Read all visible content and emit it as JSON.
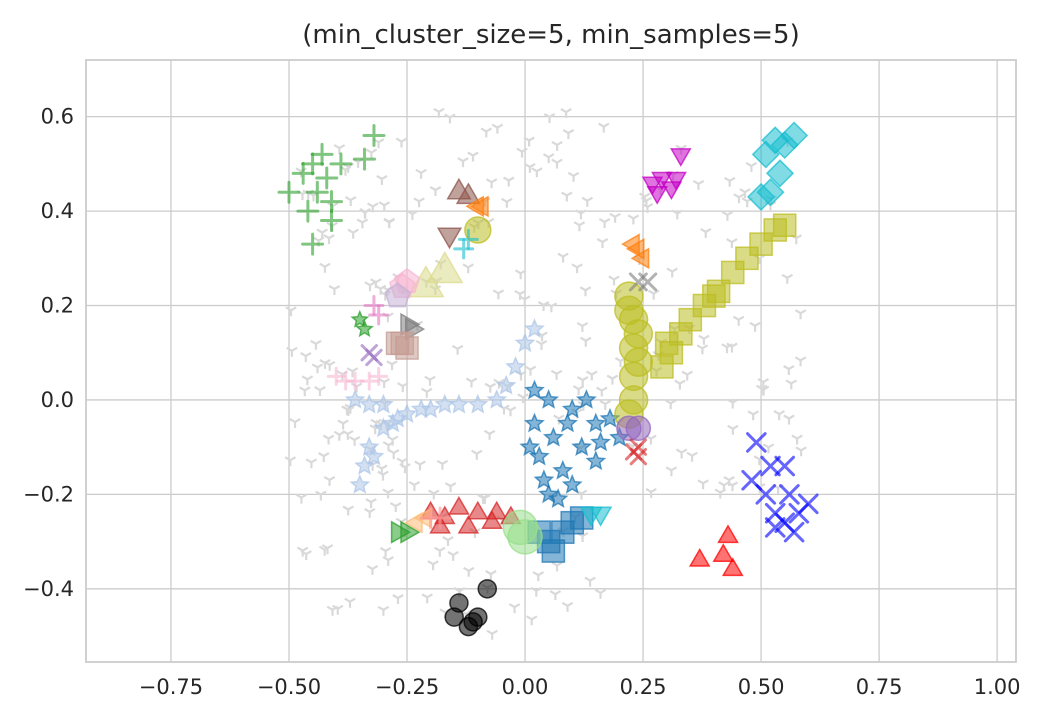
{
  "chart_data": {
    "type": "scatter",
    "title": "(min_cluster_size=5, min_samples=5)",
    "xlabel": "",
    "ylabel": "",
    "xlim": [
      -0.93,
      1.04
    ],
    "ylim": [
      -0.555,
      0.72
    ],
    "xticks": [
      -0.75,
      -0.5,
      -0.25,
      0.0,
      0.25,
      0.5,
      0.75,
      1.0
    ],
    "xtick_labels": [
      "−0.75",
      "−0.50",
      "−0.25",
      "0.00",
      "0.25",
      "0.50",
      "0.75",
      "1.00"
    ],
    "yticks": [
      -0.4,
      -0.2,
      0.0,
      0.2,
      0.4,
      0.6
    ],
    "ytick_labels": [
      "−0.4",
      "−0.2",
      "0.0",
      "0.2",
      "0.4",
      "0.6"
    ],
    "grid": true,
    "legend": "none",
    "noise": {
      "color": "#d9d9d9",
      "marker": "tri",
      "regions": [
        {
          "x": [
            -0.5,
            -0.2
          ],
          "y": [
            -0.45,
            0.55
          ],
          "n": 110
        },
        {
          "x": [
            -0.2,
            0.2
          ],
          "y": [
            -0.5,
            0.62
          ],
          "n": 110
        },
        {
          "x": [
            0.2,
            0.6
          ],
          "y": [
            -0.2,
            0.55
          ],
          "n": 70
        }
      ]
    },
    "series": [
      {
        "color": "#1f77b4",
        "marker": "star",
        "size": 9,
        "points": [
          [
            0.02,
            -0.05
          ],
          [
            0.05,
            0.0
          ],
          [
            0.1,
            -0.02
          ],
          [
            0.15,
            -0.05
          ],
          [
            0.2,
            -0.08
          ],
          [
            0.03,
            -0.12
          ],
          [
            0.08,
            -0.15
          ],
          [
            0.12,
            -0.1
          ],
          [
            0.05,
            -0.2
          ],
          [
            0.1,
            -0.18
          ],
          [
            0.02,
            0.02
          ],
          [
            0.06,
            -0.08
          ],
          [
            0.15,
            -0.13
          ],
          [
            0.18,
            -0.04
          ],
          [
            0.04,
            -0.17
          ],
          [
            0.09,
            -0.05
          ],
          [
            0.13,
            0.0
          ],
          [
            0.01,
            -0.1
          ],
          [
            0.07,
            -0.21
          ],
          [
            0.16,
            -0.09
          ]
        ]
      },
      {
        "color": "#1f77b4",
        "marker": "square",
        "size": 13,
        "points": [
          [
            0.05,
            -0.3
          ],
          [
            0.08,
            -0.28
          ],
          [
            0.1,
            -0.26
          ],
          [
            0.12,
            -0.25
          ],
          [
            0.06,
            -0.32
          ],
          [
            0.03,
            -0.28
          ]
        ]
      },
      {
        "color": "#aec7e8",
        "marker": "star",
        "size": 9,
        "points": [
          [
            -0.35,
            -0.18
          ],
          [
            -0.33,
            -0.1
          ],
          [
            -0.3,
            -0.06
          ],
          [
            -0.27,
            -0.04
          ],
          [
            -0.25,
            -0.03
          ],
          [
            -0.22,
            -0.02
          ],
          [
            -0.2,
            -0.02
          ],
          [
            -0.17,
            -0.01
          ],
          [
            -0.14,
            -0.01
          ],
          [
            -0.1,
            -0.01
          ],
          [
            -0.06,
            0.0
          ],
          [
            -0.04,
            0.03
          ],
          [
            -0.02,
            0.07
          ],
          [
            0.0,
            0.12
          ],
          [
            0.02,
            0.15
          ],
          [
            -0.36,
            0.0
          ],
          [
            -0.33,
            -0.01
          ],
          [
            -0.3,
            -0.01
          ],
          [
            -0.34,
            -0.14
          ],
          [
            -0.32,
            -0.12
          ],
          [
            -0.28,
            -0.05
          ]
        ]
      },
      {
        "color": "#d62728",
        "marker": "triangle-up",
        "size": 11,
        "points": [
          [
            -0.2,
            -0.24
          ],
          [
            -0.17,
            -0.25
          ],
          [
            -0.14,
            -0.23
          ],
          [
            -0.1,
            -0.24
          ],
          [
            -0.06,
            -0.24
          ],
          [
            -0.03,
            -0.25
          ],
          [
            -0.18,
            -0.27
          ],
          [
            -0.12,
            -0.27
          ],
          [
            -0.07,
            -0.26
          ]
        ]
      },
      {
        "color": "#98df8a",
        "marker": "circle",
        "size": 17,
        "points": [
          [
            -0.01,
            -0.27
          ],
          [
            0.0,
            -0.29
          ]
        ]
      },
      {
        "color": "#17becf",
        "marker": "triangle-down",
        "size": 12,
        "points": [
          [
            0.14,
            -0.24
          ],
          [
            0.16,
            -0.24
          ]
        ]
      },
      {
        "color": "#2ca02c",
        "marker": "triangle-right",
        "size": 12,
        "points": [
          [
            -0.27,
            -0.28
          ],
          [
            -0.25,
            -0.28
          ]
        ]
      },
      {
        "color": "#ffbb78",
        "marker": "triangle-left",
        "size": 11,
        "points": [
          [
            -0.23,
            -0.26
          ],
          [
            -0.21,
            -0.25
          ]
        ]
      },
      {
        "color": "#ff9896",
        "marker": "plus",
        "size": 10,
        "points": [
          [
            -0.2,
            -0.25
          ],
          [
            -0.18,
            -0.25
          ]
        ]
      },
      {
        "color": "#000000",
        "marker": "circle",
        "size": 9,
        "points": [
          [
            -0.14,
            -0.43
          ],
          [
            -0.08,
            -0.4
          ],
          [
            -0.1,
            -0.46
          ],
          [
            -0.12,
            -0.48
          ],
          [
            -0.15,
            -0.46
          ],
          [
            -0.11,
            -0.47
          ]
        ]
      },
      {
        "color": "#bcbd22",
        "marker": "circle",
        "size": 14,
        "points": [
          [
            0.22,
            0.22
          ],
          [
            0.23,
            0.17
          ],
          [
            0.23,
            0.11
          ],
          [
            0.23,
            0.05
          ],
          [
            0.23,
            0.0
          ],
          [
            0.22,
            -0.03
          ],
          [
            0.24,
            0.14
          ],
          [
            0.24,
            0.08
          ],
          [
            0.22,
            0.19
          ]
        ]
      },
      {
        "color": "#bcbd22",
        "marker": "square",
        "size": 13,
        "points": [
          [
            0.29,
            0.07
          ],
          [
            0.31,
            0.1
          ],
          [
            0.33,
            0.14
          ],
          [
            0.35,
            0.17
          ],
          [
            0.38,
            0.2
          ],
          [
            0.41,
            0.23
          ],
          [
            0.44,
            0.27
          ],
          [
            0.47,
            0.3
          ],
          [
            0.5,
            0.33
          ],
          [
            0.53,
            0.36
          ],
          [
            0.55,
            0.37
          ],
          [
            0.3,
            0.12
          ],
          [
            0.4,
            0.22
          ]
        ]
      },
      {
        "color": "#bcbd22",
        "marker": "circle",
        "size": 13,
        "points": [
          [
            -0.1,
            0.36
          ]
        ]
      },
      {
        "color": "#9467bd",
        "marker": "circle",
        "size": 12,
        "points": [
          [
            0.22,
            -0.06
          ],
          [
            0.24,
            -0.06
          ]
        ]
      },
      {
        "color": "#d62728",
        "marker": "x",
        "size": 9,
        "points": [
          [
            0.23,
            -0.11
          ],
          [
            0.24,
            -0.12
          ],
          [
            0.24,
            -0.1
          ]
        ]
      },
      {
        "color": "#7f7f7f",
        "marker": "x",
        "size": 10,
        "points": [
          [
            0.24,
            0.25
          ],
          [
            0.26,
            0.25
          ]
        ]
      },
      {
        "color": "#ff7f0e",
        "marker": "triangle-left",
        "size": 11,
        "points": [
          [
            0.23,
            0.33
          ],
          [
            0.25,
            0.3
          ],
          [
            0.24,
            0.32
          ]
        ]
      },
      {
        "color": "#c400c4",
        "marker": "triangle-down",
        "size": 11,
        "points": [
          [
            0.27,
            0.46
          ],
          [
            0.29,
            0.47
          ],
          [
            0.31,
            0.45
          ],
          [
            0.33,
            0.52
          ],
          [
            0.28,
            0.44
          ],
          [
            0.32,
            0.47
          ]
        ]
      },
      {
        "color": "#17becf",
        "marker": "diamond",
        "size": 13,
        "points": [
          [
            0.51,
            0.52
          ],
          [
            0.53,
            0.55
          ],
          [
            0.55,
            0.54
          ],
          [
            0.57,
            0.56
          ],
          [
            0.52,
            0.44
          ],
          [
            0.54,
            0.48
          ],
          [
            0.5,
            0.43
          ]
        ]
      },
      {
        "color": "#0000ff",
        "marker": "x",
        "size": 11,
        "points": [
          [
            0.49,
            -0.09
          ],
          [
            0.52,
            -0.14
          ],
          [
            0.55,
            -0.14
          ],
          [
            0.48,
            -0.17
          ],
          [
            0.51,
            -0.2
          ],
          [
            0.53,
            -0.24
          ],
          [
            0.56,
            -0.2
          ],
          [
            0.58,
            -0.24
          ],
          [
            0.6,
            -0.22
          ],
          [
            0.53,
            -0.27
          ],
          [
            0.57,
            -0.28
          ],
          [
            0.55,
            -0.26
          ]
        ]
      },
      {
        "color": "#ff0000",
        "marker": "triangle-up",
        "size": 11,
        "points": [
          [
            0.37,
            -0.34
          ],
          [
            0.42,
            -0.33
          ],
          [
            0.43,
            -0.29
          ],
          [
            0.44,
            -0.36
          ]
        ]
      },
      {
        "color": "#2ca02c",
        "marker": "plus",
        "size": 10,
        "points": [
          [
            -0.5,
            0.44
          ],
          [
            -0.47,
            0.48
          ],
          [
            -0.45,
            0.5
          ],
          [
            -0.43,
            0.52
          ],
          [
            -0.42,
            0.47
          ],
          [
            -0.39,
            0.5
          ],
          [
            -0.32,
            0.56
          ],
          [
            -0.34,
            0.51
          ],
          [
            -0.44,
            0.44
          ],
          [
            -0.46,
            0.4
          ],
          [
            -0.41,
            0.42
          ],
          [
            -0.41,
            0.38
          ],
          [
            -0.45,
            0.33
          ]
        ]
      },
      {
        "color": "#2ca02c",
        "marker": "star",
        "size": 8,
        "points": [
          [
            -0.35,
            0.17
          ],
          [
            -0.34,
            0.15
          ]
        ]
      },
      {
        "color": "#8c564b",
        "marker": "triangle-up",
        "size": 13,
        "points": [
          [
            -0.14,
            0.44
          ],
          [
            -0.12,
            0.43
          ]
        ]
      },
      {
        "color": "#8c564b",
        "marker": "triangle-down",
        "size": 13,
        "points": [
          [
            -0.16,
            0.35
          ]
        ]
      },
      {
        "color": "#ff7f0e",
        "marker": "triangle-left",
        "size": 11,
        "points": [
          [
            -0.1,
            0.41
          ],
          [
            -0.09,
            0.41
          ]
        ]
      },
      {
        "color": "#17becf",
        "marker": "plus",
        "size": 9,
        "points": [
          [
            -0.13,
            0.32
          ],
          [
            -0.12,
            0.34
          ]
        ]
      },
      {
        "color": "#dbdb8d",
        "marker": "triangle-up",
        "size": 20,
        "points": [
          [
            -0.21,
            0.24
          ],
          [
            -0.17,
            0.27
          ]
        ]
      },
      {
        "color": "#f7b6d2",
        "marker": "pentagon",
        "size": 13,
        "points": [
          [
            -0.26,
            0.24
          ],
          [
            -0.25,
            0.25
          ]
        ]
      },
      {
        "color": "#c5b0d5",
        "marker": "pentagon",
        "size": 13,
        "points": [
          [
            -0.27,
            0.22
          ]
        ]
      },
      {
        "color": "#e377c2",
        "marker": "plus",
        "size": 9,
        "points": [
          [
            -0.32,
            0.2
          ],
          [
            -0.31,
            0.18
          ]
        ]
      },
      {
        "color": "#7f7f7f",
        "marker": "triangle-right",
        "size": 12,
        "points": [
          [
            -0.25,
            0.16
          ],
          [
            -0.24,
            0.15
          ]
        ]
      },
      {
        "color": "#c49c94",
        "marker": "square",
        "size": 13,
        "points": [
          [
            -0.27,
            0.12
          ],
          [
            -0.26,
            0.12
          ],
          [
            -0.25,
            0.11
          ]
        ]
      },
      {
        "color": "#9467bd",
        "marker": "x",
        "size": 9,
        "points": [
          [
            -0.33,
            0.1
          ],
          [
            -0.32,
            0.09
          ]
        ]
      },
      {
        "color": "#f7b6d2",
        "marker": "plus",
        "size": 8,
        "points": [
          [
            -0.4,
            0.05
          ],
          [
            -0.38,
            0.04
          ],
          [
            -0.36,
            0.04
          ],
          [
            -0.33,
            0.04
          ],
          [
            -0.31,
            0.05
          ]
        ]
      }
    ]
  }
}
